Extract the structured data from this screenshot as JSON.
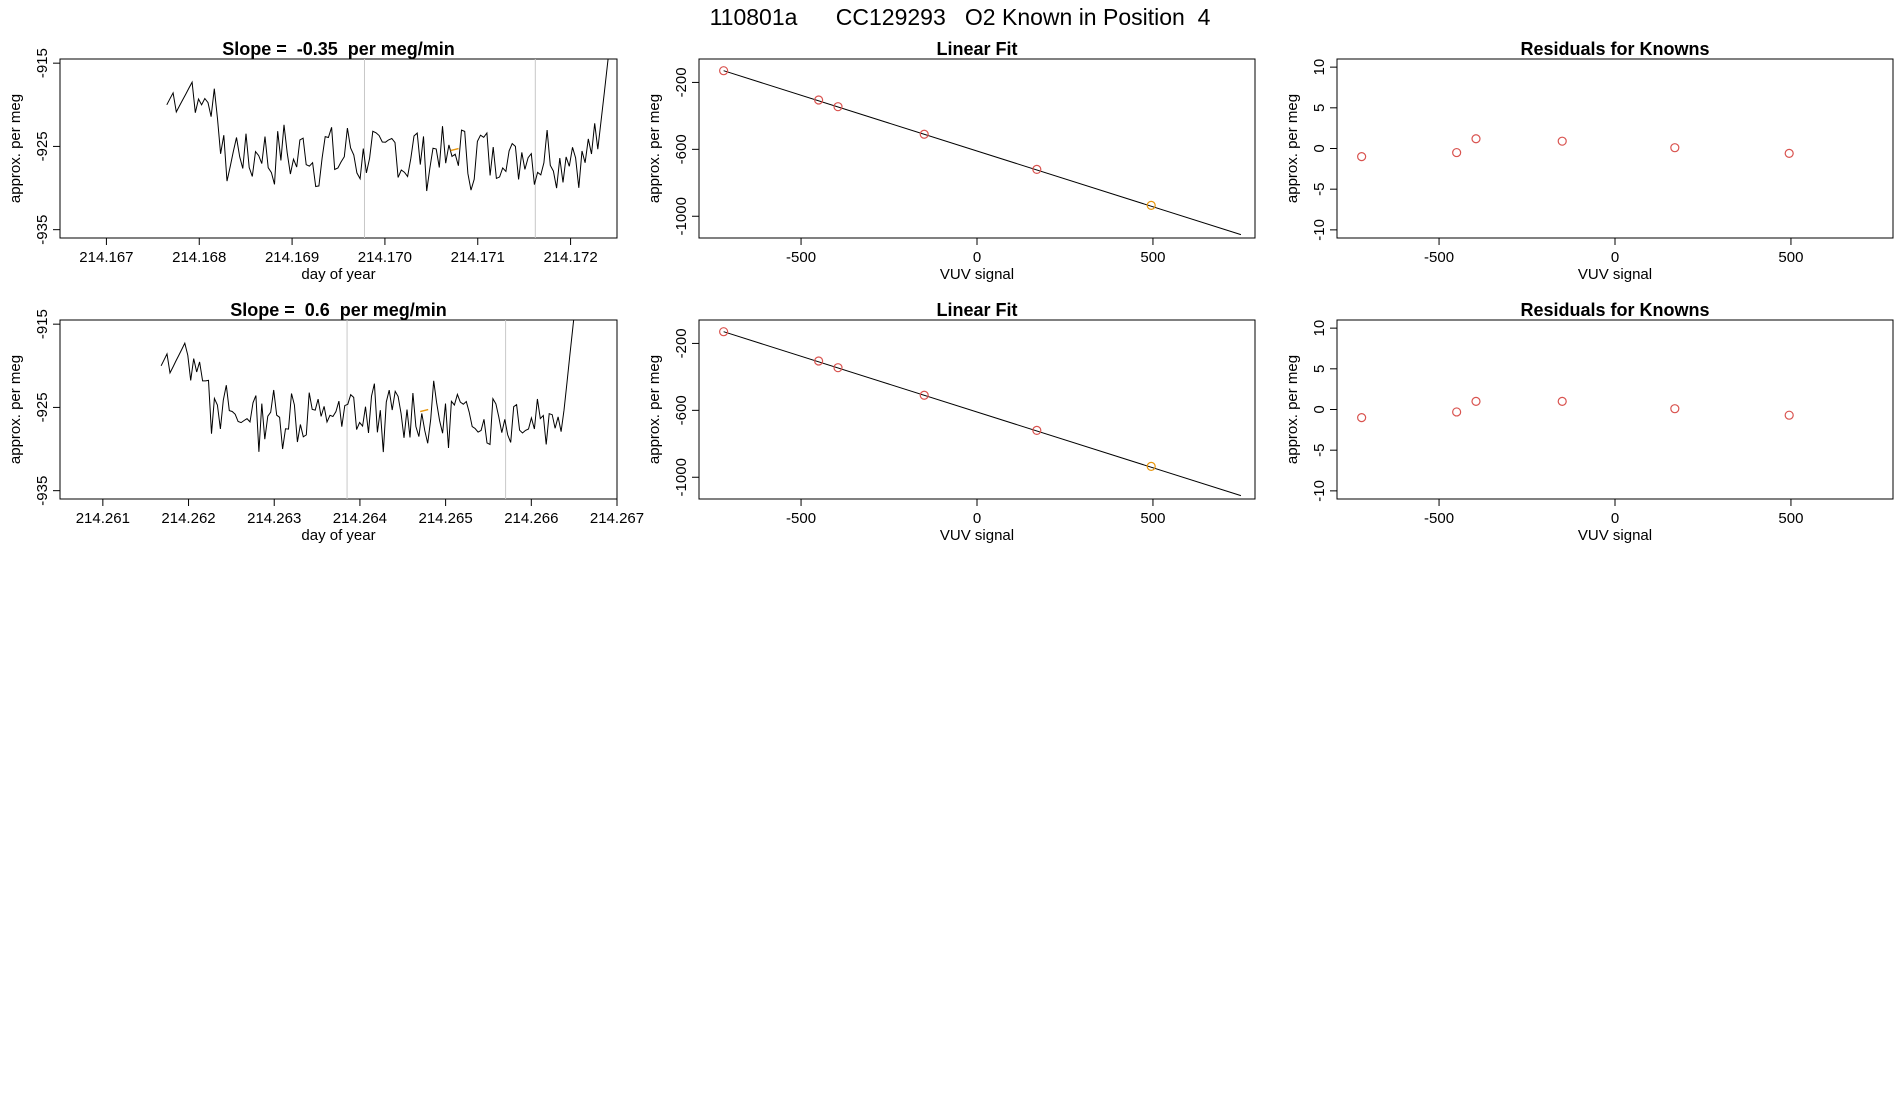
{
  "figure": {
    "title": "110801a      CC129293   O2 Known in Position  4"
  },
  "chart_data": [
    {
      "type": "line",
      "id": "ts1",
      "title": "Slope =  -0.35  per meg/min",
      "xlabel": "day of year",
      "ylabel": "approx. per meg",
      "xlim": [
        214.1665,
        214.1725
      ],
      "ylim": [
        -936,
        -914.5
      ],
      "xticks": [
        "214.167",
        "214.168",
        "214.169",
        "214.170",
        "214.171",
        "214.172"
      ],
      "xtick_values": [
        214.167,
        214.168,
        214.169,
        214.17,
        214.171,
        214.172
      ],
      "yticks": [
        "-915",
        "-925",
        "-935"
      ],
      "ytick_values": [
        -915,
        -925,
        -935
      ],
      "x_start": 214.16765,
      "x_end": 214.17243,
      "vlines": [
        214.16978,
        214.17162
      ],
      "highlight": {
        "x": 214.17075,
        "y": -925.5
      },
      "seed": 7
    },
    {
      "type": "scatter",
      "id": "fit1",
      "title": "Linear Fit",
      "xlabel": "VUV signal",
      "ylabel": "approx. per meg",
      "xlim": [
        -790,
        790
      ],
      "ylim": [
        -1130,
        -60
      ],
      "xticks": [
        "-500",
        "0",
        "500"
      ],
      "xtick_values": [
        -500,
        0,
        500
      ],
      "yticks": [
        "-200",
        "-600",
        "-1000"
      ],
      "ytick_values": [
        -200,
        -600,
        -1000
      ],
      "points_x": [
        -720,
        -450,
        -395,
        -150,
        170,
        495
      ],
      "points_y": [
        -130,
        -305,
        -345,
        -510,
        -720,
        -935
      ],
      "point_colors": [
        "#d9534f",
        "#d9534f",
        "#d9534f",
        "#d9534f",
        "#d9534f",
        "#e8960c"
      ],
      "fit_line": [
        [
          -720,
          -130
        ],
        [
          750,
          -1110
        ]
      ]
    },
    {
      "type": "scatter",
      "id": "res1",
      "title": "Residuals for Knowns",
      "xlabel": "VUV signal",
      "ylabel": "approx. per meg",
      "xlim": [
        -790,
        790
      ],
      "ylim": [
        -11,
        11
      ],
      "xticks": [
        "-500",
        "0",
        "500"
      ],
      "xtick_values": [
        -500,
        0,
        500
      ],
      "yticks": [
        "-10",
        "-5",
        "0",
        "5",
        "10"
      ],
      "ytick_values": [
        -10,
        -5,
        0,
        5,
        10
      ],
      "points_x": [
        -720,
        -450,
        -395,
        -150,
        170,
        495
      ],
      "points_y": [
        -1,
        -0.5,
        1.2,
        0.9,
        0.1,
        -0.6
      ],
      "point_colors": [
        "#d9534f",
        "#d9534f",
        "#d9534f",
        "#d9534f",
        "#d9534f",
        "#d9534f"
      ]
    },
    {
      "type": "line",
      "id": "ts2",
      "title": "Slope =  0.6  per meg/min",
      "xlabel": "day of year",
      "ylabel": "approx. per meg",
      "xlim": [
        214.2605,
        214.267
      ],
      "ylim": [
        -936,
        -914.5
      ],
      "xticks": [
        "214.261",
        "214.262",
        "214.263",
        "214.264",
        "214.265",
        "214.266",
        "214.267"
      ],
      "xtick_values": [
        214.261,
        214.262,
        214.263,
        214.264,
        214.265,
        214.266,
        214.267
      ],
      "yticks": [
        "-915",
        "-925",
        "-935"
      ],
      "ytick_values": [
        -915,
        -925,
        -935
      ],
      "x_start": 214.26168,
      "x_end": 214.26652,
      "vlines": [
        214.26385,
        214.2657
      ],
      "highlight": {
        "x": 214.26475,
        "y": -925.5
      },
      "seed": 13
    },
    {
      "type": "scatter",
      "id": "fit2",
      "title": "Linear Fit",
      "xlabel": "VUV signal",
      "ylabel": "approx. per meg",
      "xlim": [
        -790,
        790
      ],
      "ylim": [
        -1130,
        -60
      ],
      "xticks": [
        "-500",
        "0",
        "500"
      ],
      "xtick_values": [
        -500,
        0,
        500
      ],
      "yticks": [
        "-200",
        "-600",
        "-1000"
      ],
      "ytick_values": [
        -200,
        -600,
        -1000
      ],
      "points_x": [
        -720,
        -450,
        -395,
        -150,
        170,
        495
      ],
      "points_y": [
        -130,
        -305,
        -345,
        -510,
        -720,
        -935
      ],
      "point_colors": [
        "#d9534f",
        "#d9534f",
        "#d9534f",
        "#d9534f",
        "#d9534f",
        "#e8960c"
      ],
      "fit_line": [
        [
          -720,
          -130
        ],
        [
          750,
          -1110
        ]
      ]
    },
    {
      "type": "scatter",
      "id": "res2",
      "title": "Residuals for Knowns",
      "xlabel": "VUV signal",
      "ylabel": "approx. per meg",
      "xlim": [
        -790,
        790
      ],
      "ylim": [
        -11,
        11
      ],
      "xticks": [
        "-500",
        "0",
        "500"
      ],
      "xtick_values": [
        -500,
        0,
        500
      ],
      "yticks": [
        "-10",
        "-5",
        "0",
        "5",
        "10"
      ],
      "ytick_values": [
        -10,
        -5,
        0,
        5,
        10
      ],
      "points_x": [
        -720,
        -450,
        -395,
        -150,
        170,
        495
      ],
      "points_y": [
        -1,
        -0.3,
        1,
        1,
        0.1,
        -0.7
      ],
      "point_colors": [
        "#d9534f",
        "#d9534f",
        "#d9534f",
        "#d9534f",
        "#d9534f",
        "#d9534f"
      ]
    }
  ]
}
